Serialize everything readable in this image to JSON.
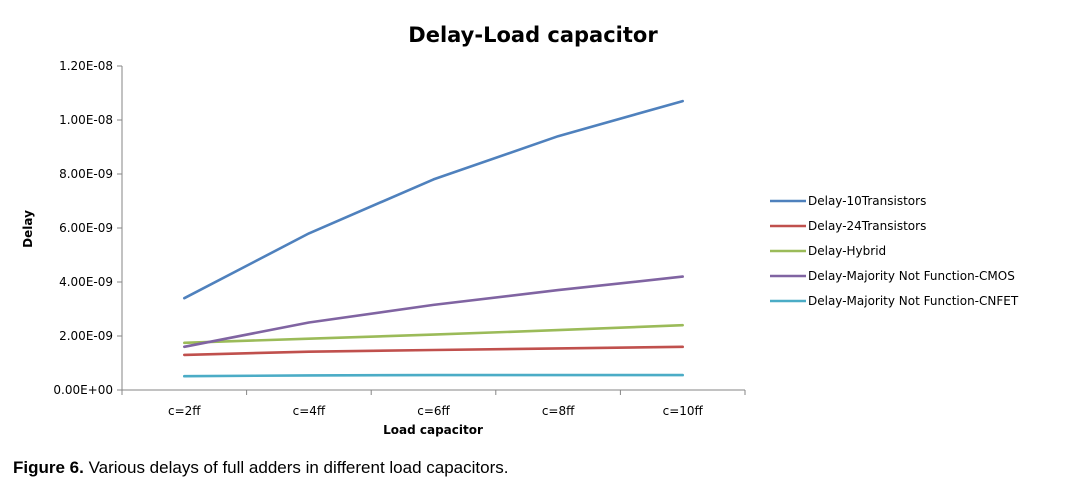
{
  "chart_data": {
    "type": "line",
    "title": "Delay-Load capacitor",
    "xlabel": "Load capacitor",
    "ylabel": "Delay",
    "categories": [
      "c=2ff",
      "c=4ff",
      "c=6ff",
      "c=8ff",
      "c=10ff"
    ],
    "ylim": [
      0,
      1.2e-08
    ],
    "yticks": [
      0,
      2e-09,
      4e-09,
      6e-09,
      8e-09,
      1e-08,
      1.2e-08
    ],
    "ytick_labels": [
      "0.00E+00",
      "2.00E-09",
      "4.00E-09",
      "6.00E-09",
      "8.00E-09",
      "1.00E-08",
      "1.20E-08"
    ],
    "grid": false,
    "legend_position": "right",
    "series": [
      {
        "name": "Delay-10Transistors",
        "color": "#4F81BD",
        "values": [
          3.4e-09,
          5.8e-09,
          7.8e-09,
          9.4e-09,
          1.07e-08
        ]
      },
      {
        "name": "Delay-24Transistors",
        "color": "#C0504D",
        "values": [
          1.3e-09,
          1.42e-09,
          1.48e-09,
          1.54e-09,
          1.6e-09
        ]
      },
      {
        "name": "Delay-Hybrid",
        "color": "#9BBB59",
        "values": [
          1.75e-09,
          1.9e-09,
          2.05e-09,
          2.22e-09,
          2.4e-09
        ]
      },
      {
        "name": "Delay-Majority Not Function-CMOS",
        "color": "#8064A2",
        "values": [
          1.6e-09,
          2.5e-09,
          3.15e-09,
          3.7e-09,
          4.2e-09
        ]
      },
      {
        "name": "Delay-Majority Not Function-CNFET",
        "color": "#4BACC6",
        "values": [
          5.1e-10,
          5.4e-10,
          5.5e-10,
          5.5e-10,
          5.5e-10
        ]
      }
    ]
  },
  "caption": {
    "label": "Figure 6.",
    "text": " Various delays of full adders in different load capacitors."
  }
}
